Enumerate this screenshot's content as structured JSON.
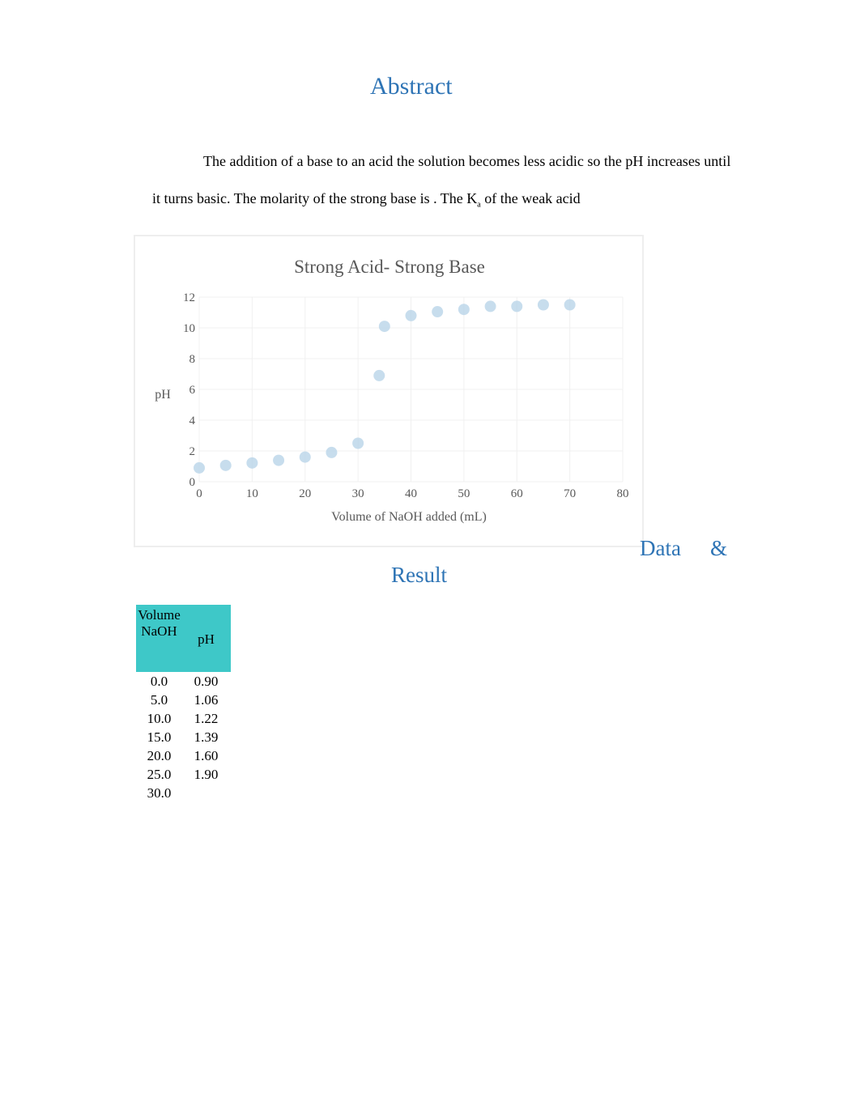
{
  "heading": "Abstract",
  "paragraph": {
    "before": "The addition of a base to an acid the solution becomes less acidic so the pH increases until it turns basic. The molarity of the strong base is . The K",
    "subscript": "a",
    "after": " of the weak acid"
  },
  "chart_data": {
    "type": "scatter",
    "title": "Strong Acid- Strong Base",
    "x_label": "Volume of NaOH added (mL)",
    "y_label": "pH",
    "x": [
      0,
      5,
      10,
      15,
      20,
      25,
      30,
      34,
      35,
      40,
      45,
      50,
      55,
      60,
      65,
      70
    ],
    "values": [
      0.9,
      1.06,
      1.22,
      1.39,
      1.6,
      1.9,
      2.5,
      6.9,
      10.1,
      10.8,
      11.05,
      11.2,
      11.4,
      11.4,
      11.5,
      11.5
    ],
    "color": "#b9d4e8",
    "xlim": [
      0,
      80
    ],
    "ylim": [
      0,
      12
    ],
    "xticks": [
      0,
      10,
      20,
      30,
      40,
      50,
      60,
      70,
      80
    ],
    "yticks": [
      0,
      2,
      4,
      6,
      8,
      10,
      12
    ],
    "grid": true
  },
  "section_heading": {
    "first": "Data",
    "amp": "&",
    "second": "Result"
  },
  "table": {
    "header": [
      "Volume NaOH",
      "pH"
    ],
    "rows": [
      [
        "0.0",
        "0.90"
      ],
      [
        "5.0",
        "1.06"
      ],
      [
        "10.0",
        "1.22"
      ],
      [
        "15.0",
        "1.39"
      ],
      [
        "20.0",
        "1.60"
      ],
      [
        "25.0",
        "1.90"
      ],
      [
        "30.0"
      ]
    ]
  }
}
